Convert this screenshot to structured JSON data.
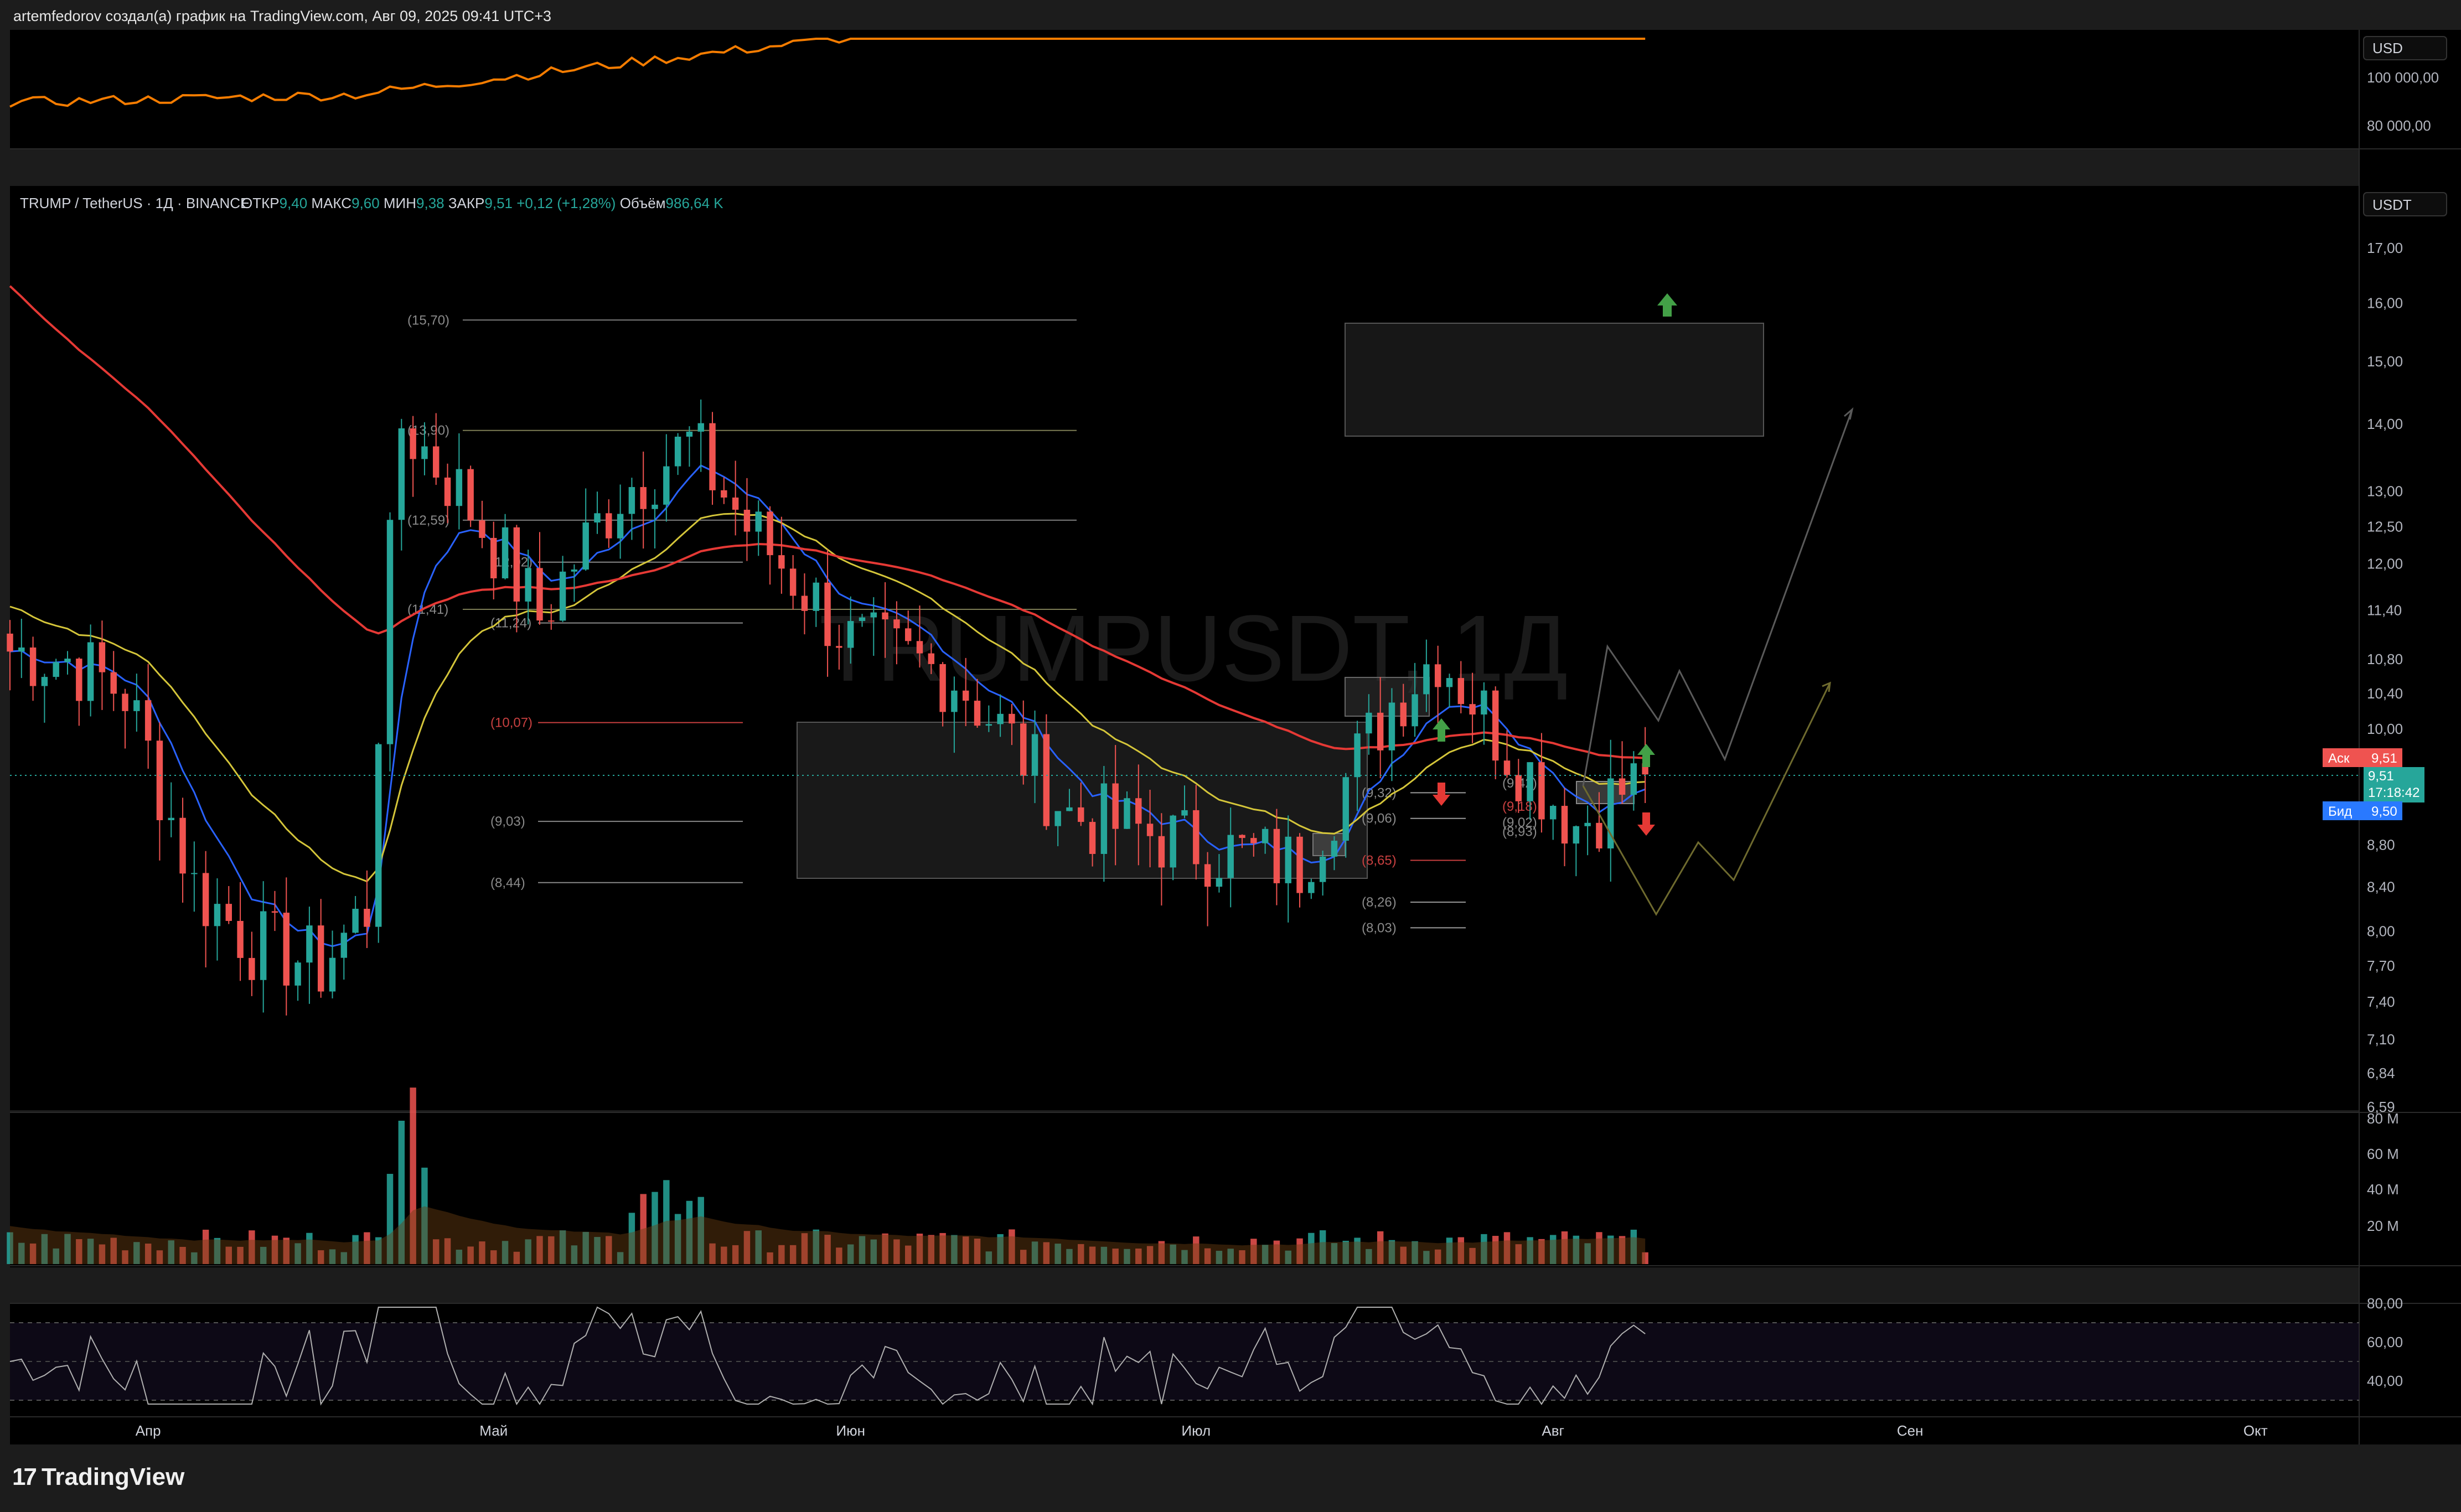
{
  "header": {
    "attribution": "artemfedorov создал(а) график на TradingView.com, Авг 09, 2025 09:41 UTC+3"
  },
  "top_panel": {
    "currency_badge": "USD",
    "scale_ticks": [
      "100 000,00",
      "80 000,00"
    ]
  },
  "main_panel": {
    "symbol_title": "TRUMP / TetherUS · 1Д · BINANCE",
    "ohlc": [
      {
        "label": "ОТКР",
        "value": "9,40"
      },
      {
        "label": "МАКС",
        "value": "9,60"
      },
      {
        "label": "МИН",
        "value": "9,38"
      },
      {
        "label": "ЗАКР",
        "value": "9,51"
      }
    ],
    "change": "+0,12 (+1,28%)",
    "volume_label": "Объём",
    "volume_value": "986,64 K",
    "watermark": "TRUMPUSDT, 1Д",
    "currency_badge": "USDT",
    "price_ticks": [
      "17,00",
      "16,00",
      "15,00",
      "14,00",
      "13,00",
      "12,50",
      "12,00",
      "11,40",
      "10,80",
      "10,40",
      "10,00",
      "8,80",
      "8,40",
      "8,00",
      "7,70",
      "7,40",
      "7,10",
      "6,84",
      "6,59"
    ],
    "ask": {
      "label": "Аск",
      "value": "9,51"
    },
    "last": {
      "value": "9,51",
      "countdown": "17:18:42"
    },
    "bid": {
      "label": "Бид",
      "value": "9,50"
    },
    "level_labels": [
      "(15,70)",
      "(13,90)",
      "(12,59)",
      "(12,02)",
      "(11,41)",
      "(11,24)",
      "(10,07)",
      "(9,03)",
      "(8,44)",
      "(9,32)",
      "(9,06)",
      "(8,65)",
      "(8,26)",
      "(8,03)",
      "(9,42)",
      "(9,18)",
      "(9,02)",
      "(8,93)"
    ]
  },
  "volume_panel": {
    "scale_ticks": [
      "80 M",
      "60 M",
      "40 M",
      "20 M"
    ]
  },
  "rsi_panel": {
    "scale_ticks": [
      "80,00",
      "60,00",
      "40,00"
    ]
  },
  "time_axis": {
    "months": [
      "Апр",
      "Май",
      "Июн",
      "Июл",
      "Авг",
      "Сен",
      "Окт"
    ]
  },
  "logo": {
    "text": "TradingView"
  },
  "colors": {
    "up": "#26a69a",
    "down": "#ef5350",
    "ema_fast": "#2962ff",
    "ema_mid": "#d4c53a",
    "ema_slow": "#e53935",
    "btc_line": "#f57c00",
    "ask": "#ef5350",
    "bid": "#2979ff"
  },
  "chart_data": {
    "type": "candlestick",
    "title": "TRUMP / TetherUS · 1Д · BINANCE",
    "x_range": [
      "2025-03-20",
      "2025-08-09"
    ],
    "ylim": [
      6.59,
      17.0
    ],
    "y_scale": "log",
    "series": [
      {
        "name": "TRUMPUSDT",
        "approx_close": [
          {
            "x": "2025-03-20",
            "y": 10.9
          },
          {
            "x": "2025-03-25",
            "y": 10.8
          },
          {
            "x": "2025-03-30",
            "y": 10.4
          },
          {
            "x": "2025-04-05",
            "y": 8.4
          },
          {
            "x": "2025-04-10",
            "y": 7.9
          },
          {
            "x": "2025-04-16",
            "y": 7.7
          },
          {
            "x": "2025-04-20",
            "y": 8.2
          },
          {
            "x": "2025-04-23",
            "y": 14.0
          },
          {
            "x": "2025-04-28",
            "y": 13.0
          },
          {
            "x": "2025-05-05",
            "y": 11.3
          },
          {
            "x": "2025-05-12",
            "y": 13.0
          },
          {
            "x": "2025-05-18",
            "y": 13.7
          },
          {
            "x": "2025-05-23",
            "y": 12.5
          },
          {
            "x": "2025-06-01",
            "y": 11.0
          },
          {
            "x": "2025-06-10",
            "y": 10.6
          },
          {
            "x": "2025-06-20",
            "y": 9.1
          },
          {
            "x": "2025-07-01",
            "y": 8.8
          },
          {
            "x": "2025-07-10",
            "y": 8.6
          },
          {
            "x": "2025-07-18",
            "y": 10.3
          },
          {
            "x": "2025-07-22",
            "y": 10.9
          },
          {
            "x": "2025-07-28",
            "y": 9.8
          },
          {
            "x": "2025-08-03",
            "y": 9.0
          },
          {
            "x": "2025-08-09",
            "y": 9.51
          }
        ]
      }
    ],
    "last_price": 9.51,
    "ask": 9.51,
    "bid": 9.5
  }
}
